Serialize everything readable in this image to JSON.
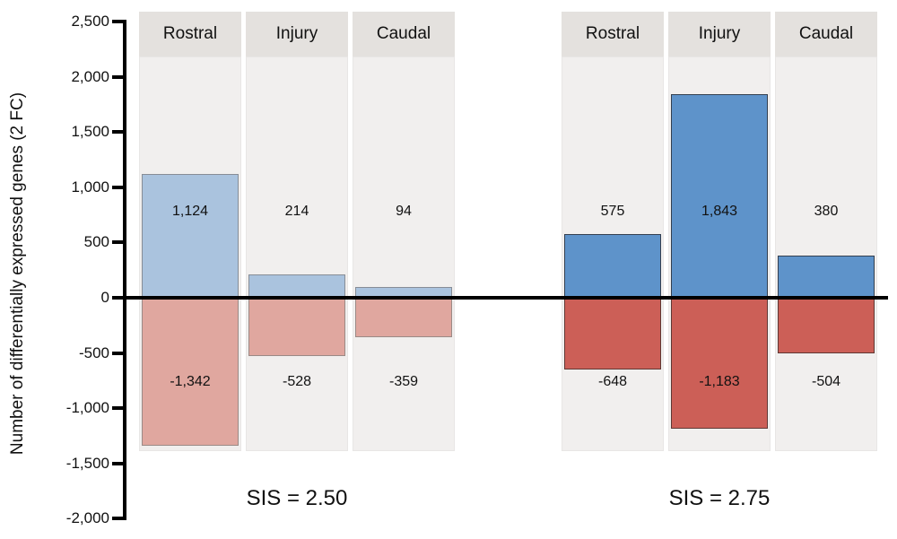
{
  "chart_data": {
    "type": "bar",
    "title": "",
    "ylabel": "Number of differentially expressed genes (2 FC)",
    "xlabel": "",
    "ylim": [
      -2000,
      2500
    ],
    "baseline": 0,
    "grid": false,
    "legend": null,
    "yticks": [
      {
        "value": 2500,
        "label": "2,500"
      },
      {
        "value": 2000,
        "label": "2,000"
      },
      {
        "value": 1500,
        "label": "1,500"
      },
      {
        "value": 1000,
        "label": "1,000"
      },
      {
        "value": 500,
        "label": "500"
      },
      {
        "value": 0,
        "label": "0"
      },
      {
        "value": -500,
        "label": "-500"
      },
      {
        "value": -1000,
        "label": "-1,000"
      },
      {
        "value": -1500,
        "label": "-1,500"
      },
      {
        "value": -2000,
        "label": "-2,000"
      }
    ],
    "panels": [
      {
        "label": "SIS = 2.50",
        "categories": [
          "Rostral",
          "Injury",
          "Caudal"
        ],
        "series": [
          {
            "name": "upregulated",
            "values": [
              1124,
              214,
              94
            ],
            "labels": [
              "1,124",
              "214",
              "94"
            ],
            "color": "#aac3de",
            "border": "#878d96"
          },
          {
            "name": "downregulated",
            "values": [
              -1342,
              -528,
              -359
            ],
            "labels": [
              "-1,342",
              "-528",
              "-359"
            ],
            "color": "#e0a79f",
            "border": "#9a8a86"
          }
        ]
      },
      {
        "label": "SIS = 2.75",
        "categories": [
          "Rostral",
          "Injury",
          "Caudal"
        ],
        "series": [
          {
            "name": "upregulated",
            "values": [
              575,
              1843,
              380
            ],
            "labels": [
              "575",
              "1,843",
              "380"
            ],
            "color": "#5e93ca",
            "border": "#333f4f"
          },
          {
            "name": "downregulated",
            "values": [
              -648,
              -1183,
              -504
            ],
            "labels": [
              "-648",
              "-1,183",
              "-504"
            ],
            "color": "#cc5f57",
            "border": "#5f3834"
          }
        ]
      }
    ],
    "colors": {
      "column_background": "#f1efee",
      "header_background": "#e4e1de",
      "axis": "#000000",
      "text": "#1a1a1a"
    }
  }
}
